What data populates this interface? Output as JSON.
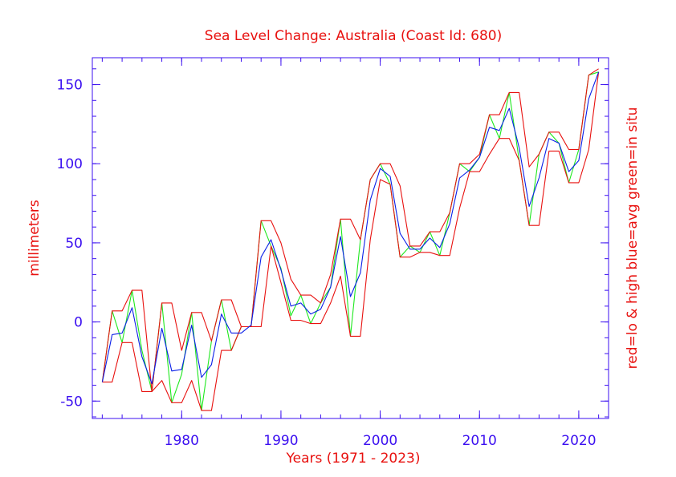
{
  "chart_data": {
    "type": "line",
    "title": "Sea Level Change: Australia (Coast Id: 680)",
    "xlabel": "Years (1971 - 2023)",
    "ylabel": "millimeters",
    "ylabel_right": "red=lo & high  blue=avg  green=in situ",
    "xlim": [
      1971,
      2023
    ],
    "ylim": [
      -61,
      167
    ],
    "x_ticks": [
      1980,
      1990,
      2000,
      2010,
      2020
    ],
    "y_ticks": [
      -50,
      0,
      50,
      100,
      150
    ],
    "colors": {
      "axis": "#3b0ff0",
      "text": "#e8110f",
      "low_high": "#e8110f",
      "average": "#0a1fe8",
      "in_situ": "#1ee81e"
    },
    "x": [
      1972,
      1973,
      1974,
      1975,
      1976,
      1977,
      1978,
      1979,
      1980,
      1981,
      1982,
      1983,
      1984,
      1985,
      1986,
      1987,
      1988,
      1989,
      1990,
      1991,
      1992,
      1993,
      1994,
      1995,
      1996,
      1997,
      1998,
      1999,
      2000,
      2001,
      2002,
      2003,
      2004,
      2005,
      2006,
      2007,
      2008,
      2009,
      2010,
      2011,
      2012,
      2013,
      2014,
      2015,
      2016,
      2017,
      2018,
      2019,
      2020,
      2021,
      2022
    ],
    "series": [
      {
        "name": "high",
        "color": "#e8110f",
        "values": [
          -38,
          7,
          7,
          20,
          20,
          -44,
          12,
          12,
          -18,
          6,
          6,
          -12,
          14,
          14,
          -3,
          -3,
          64,
          64,
          50,
          27,
          17,
          17,
          12,
          30,
          65,
          65,
          52,
          90,
          100,
          100,
          86,
          48,
          48,
          57,
          57,
          69,
          100,
          100,
          106,
          131,
          131,
          145,
          145,
          98,
          106,
          120,
          120,
          109,
          109,
          156,
          160
        ]
      },
      {
        "name": "low",
        "color": "#e8110f",
        "values": [
          -38,
          -38,
          -13,
          -13,
          -44,
          -44,
          -37,
          -51,
          -51,
          -37,
          -56,
          -56,
          -18,
          -18,
          -3,
          -3,
          -3,
          48,
          25,
          1,
          1,
          -1,
          -1,
          12,
          29,
          -9,
          -9,
          52,
          90,
          87,
          41,
          41,
          44,
          44,
          42,
          42,
          72,
          95,
          95,
          106,
          116,
          116,
          102,
          61,
          61,
          108,
          108,
          88,
          88,
          109,
          158
        ]
      },
      {
        "name": "average",
        "color": "#0a1fe8",
        "values": [
          -38,
          -8,
          -7,
          9,
          -22,
          -39,
          -4,
          -31,
          -30,
          -2,
          -35,
          -27,
          5,
          -7,
          -7,
          -2,
          41,
          52,
          33,
          10,
          12,
          5,
          8,
          22,
          54,
          16,
          31,
          77,
          97,
          92,
          56,
          46,
          46,
          53,
          47,
          62,
          91,
          96,
          104,
          123,
          121,
          135,
          110,
          73,
          91,
          116,
          113,
          95,
          102,
          141,
          158
        ]
      },
      {
        "name": "in_situ",
        "color": "#1ee81e",
        "values": [
          -38,
          7,
          -13,
          20,
          -18,
          -44,
          12,
          -51,
          -33,
          6,
          -56,
          -12,
          14,
          -18,
          -3,
          -3,
          64,
          48,
          34,
          4,
          17,
          -1,
          12,
          22,
          65,
          -9,
          52,
          90,
          100,
          87,
          41,
          48,
          44,
          57,
          42,
          69,
          100,
          95,
          104,
          131,
          116,
          145,
          102,
          61,
          106,
          120,
          113,
          88,
          109,
          156,
          158
        ]
      }
    ]
  }
}
